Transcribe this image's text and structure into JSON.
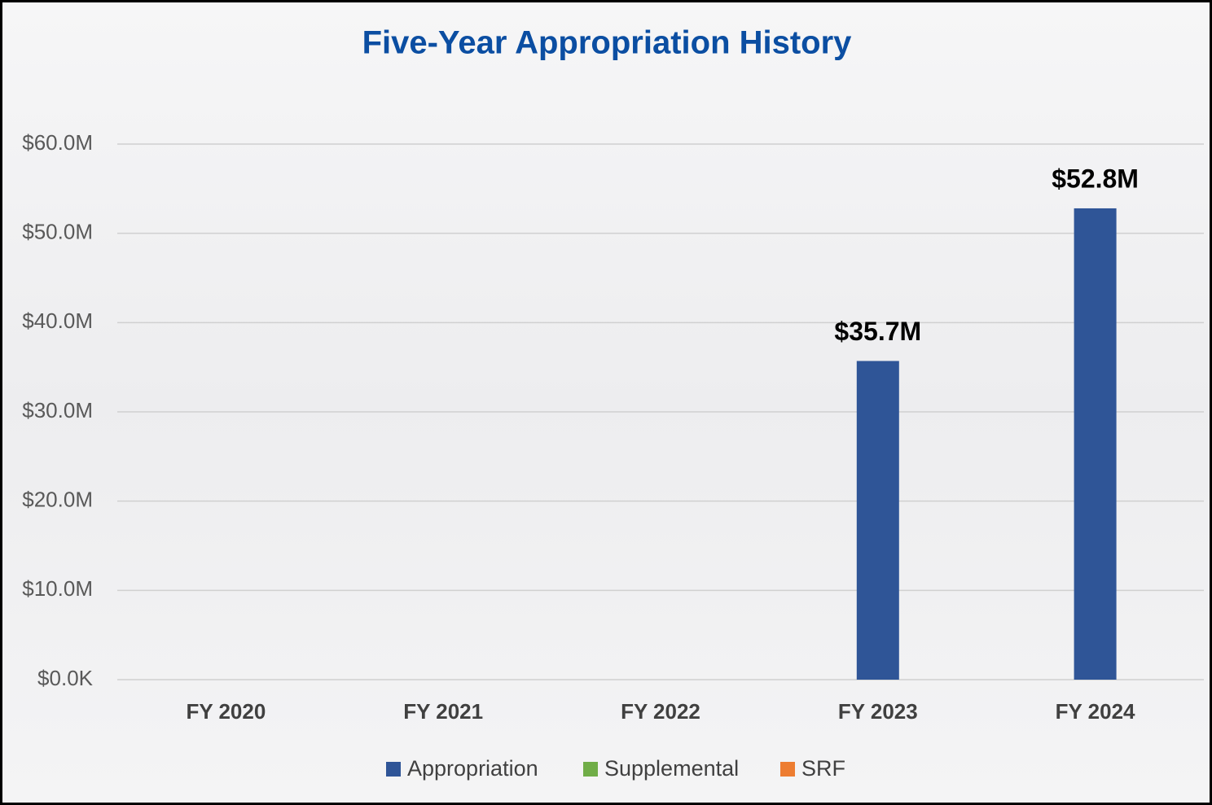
{
  "chart_data": {
    "type": "stacked_bar",
    "title": "Five-Year Appropriation History",
    "categories": [
      "FY 2020",
      "FY 2021",
      "FY 2022",
      "FY 2023",
      "FY 2024"
    ],
    "series": [
      {
        "name": "Appropriation",
        "color": "#2f5597",
        "values": [
          null,
          null,
          null,
          35700000,
          52800000
        ],
        "value_labels": [
          null,
          null,
          null,
          "$35.7M",
          "$52.8M"
        ]
      },
      {
        "name": "Supplemental",
        "color": "#70ad47",
        "values": [
          null,
          null,
          null,
          null,
          null
        ]
      },
      {
        "name": "SRF",
        "color": "#ed7d31",
        "values": [
          null,
          null,
          null,
          null,
          null
        ]
      }
    ],
    "ylim": [
      0,
      60000000
    ],
    "yticks": [
      {
        "value": 0,
        "label": "$0.0K"
      },
      {
        "value": 10000000,
        "label": "$10.0M"
      },
      {
        "value": 20000000,
        "label": "$20.0M"
      },
      {
        "value": 30000000,
        "label": "$30.0M"
      },
      {
        "value": 40000000,
        "label": "$40.0M"
      },
      {
        "value": 50000000,
        "label": "$50.0M"
      },
      {
        "value": 60000000,
        "label": "$60.0M"
      }
    ],
    "grid": true,
    "legend": "bottom"
  }
}
